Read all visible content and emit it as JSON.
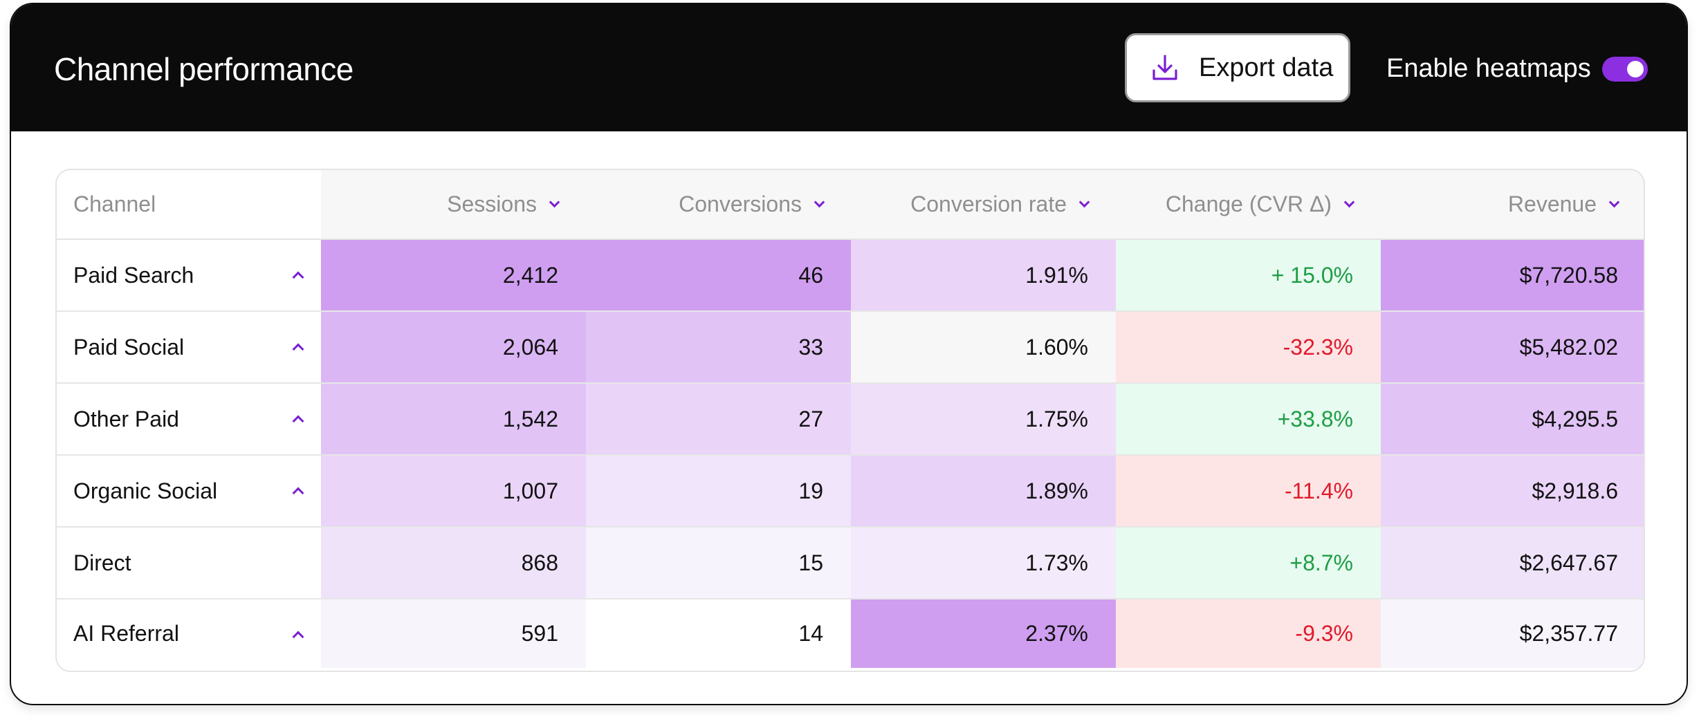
{
  "header": {
    "title": "Channel performance",
    "export_label": "Export data",
    "heatmap_label": "Enable heatmaps",
    "heatmaps_enabled": true
  },
  "table": {
    "columns": [
      "Channel",
      "Sessions",
      "Conversions",
      "Conversion rate",
      "Change (CVR Δ)",
      "Revenue"
    ],
    "rows": [
      {
        "channel": "Paid Search",
        "expandable": true,
        "sessions": "2,412",
        "conversions": "46",
        "cvr": "1.91%",
        "change": "+ 15.0%",
        "change_dir": "pos",
        "revenue": "$7,720.58",
        "colors": [
          "#cf9ef0",
          "#cf9ef0",
          "#ead4f8",
          "#e7fbf0",
          "#cf9ef0"
        ]
      },
      {
        "channel": "Paid Social",
        "expandable": true,
        "sessions": "2,064",
        "conversions": "33",
        "cvr": "1.60%",
        "change": "-32.3%",
        "change_dir": "neg",
        "revenue": "$5,482.02",
        "colors": [
          "#dbb6f4",
          "#e1c3f6",
          "#f7f7f7",
          "#fde5e5",
          "#dbb6f4"
        ]
      },
      {
        "channel": "Other Paid",
        "expandable": true,
        "sessions": "1,542",
        "conversions": "27",
        "cvr": "1.75%",
        "change": "+33.8%",
        "change_dir": "pos",
        "revenue": "$4,295.5",
        "colors": [
          "#e1c3f6",
          "#ead4f8",
          "#efdff9",
          "#e7fbf0",
          "#e1c3f6"
        ]
      },
      {
        "channel": "Organic Social",
        "expandable": true,
        "sessions": "1,007",
        "conversions": "19",
        "cvr": "1.89%",
        "change": "-11.4%",
        "change_dir": "neg",
        "revenue": "$2,918.6",
        "colors": [
          "#ead4f8",
          "#f0e5fa",
          "#e8d2f8",
          "#fde5e5",
          "#ead4f8"
        ]
      },
      {
        "channel": "Direct",
        "expandable": false,
        "sessions": "868",
        "conversions": "15",
        "cvr": "1.73%",
        "change": "+8.7%",
        "change_dir": "pos",
        "revenue": "$2,647.67",
        "colors": [
          "#efe3fa",
          "#f7f3fc",
          "#f3ebfb",
          "#e7fbf0",
          "#efe3fa"
        ]
      },
      {
        "channel": "AI Referral",
        "expandable": true,
        "sessions": "591",
        "conversions": "14",
        "cvr": "2.37%",
        "change": "-9.3%",
        "change_dir": "neg",
        "revenue": "$2,357.77",
        "colors": [
          "#f7f4fc",
          "#ffffff",
          "#cf9ef0",
          "#fde5e5",
          "#f7f4fc"
        ]
      }
    ]
  },
  "icons": {
    "export": "download-icon",
    "sort": "chevron-down-icon",
    "expand": "chevron-up-icon"
  },
  "colors": {
    "accent": "#8b2fe0",
    "positive": "#1f9d45",
    "negative": "#e0192b"
  }
}
